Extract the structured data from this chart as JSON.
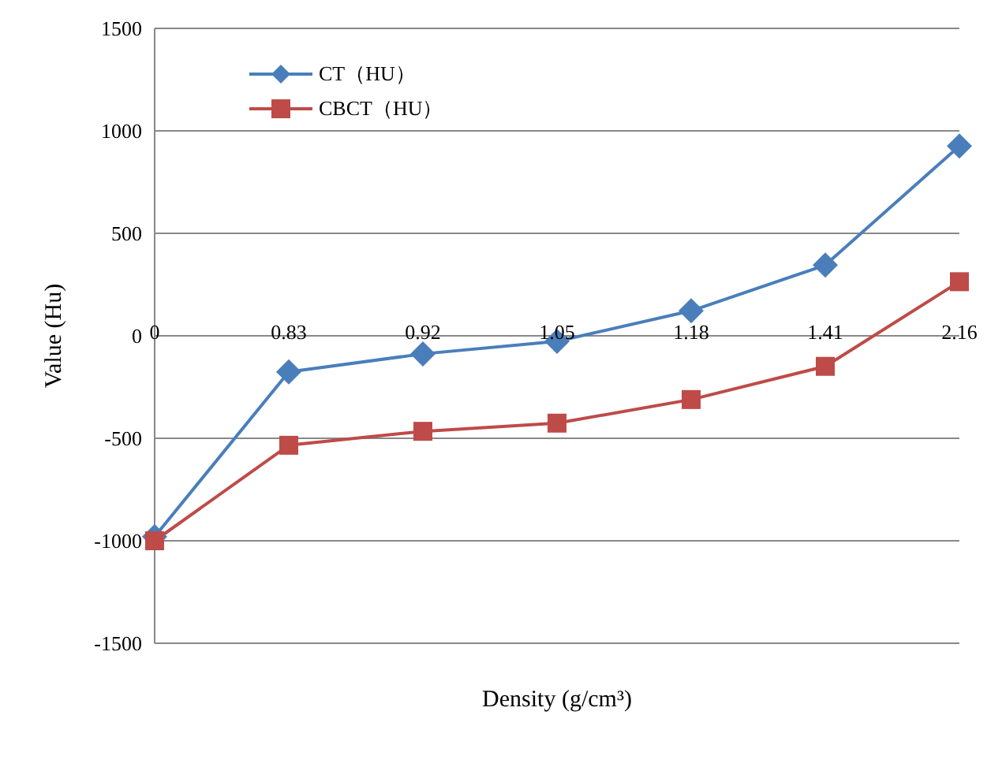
{
  "chart_data": {
    "type": "line",
    "xlabel": "Density (g/cm³)",
    "ylabel": "Value (Hu)",
    "categories": [
      "0",
      "0.83",
      "0.92",
      "1.05",
      "1.18",
      "1.41",
      "2.16"
    ],
    "series": [
      {
        "name": "CT（HU）",
        "color": "#4a7ebb",
        "marker": "diamond",
        "values": [
          -980,
          -176,
          -88,
          -27,
          122,
          345,
          926
        ]
      },
      {
        "name": "CBCT（HU）",
        "color": "#be4b48",
        "marker": "square",
        "values": [
          -1000,
          -534,
          -466,
          -426,
          -311,
          -149,
          264
        ]
      }
    ],
    "ylim": [
      -1500,
      1500
    ],
    "yticks": [
      -1500,
      -1000,
      -500,
      0,
      500,
      1000,
      1500
    ],
    "grid": "y",
    "legend": "top left"
  }
}
